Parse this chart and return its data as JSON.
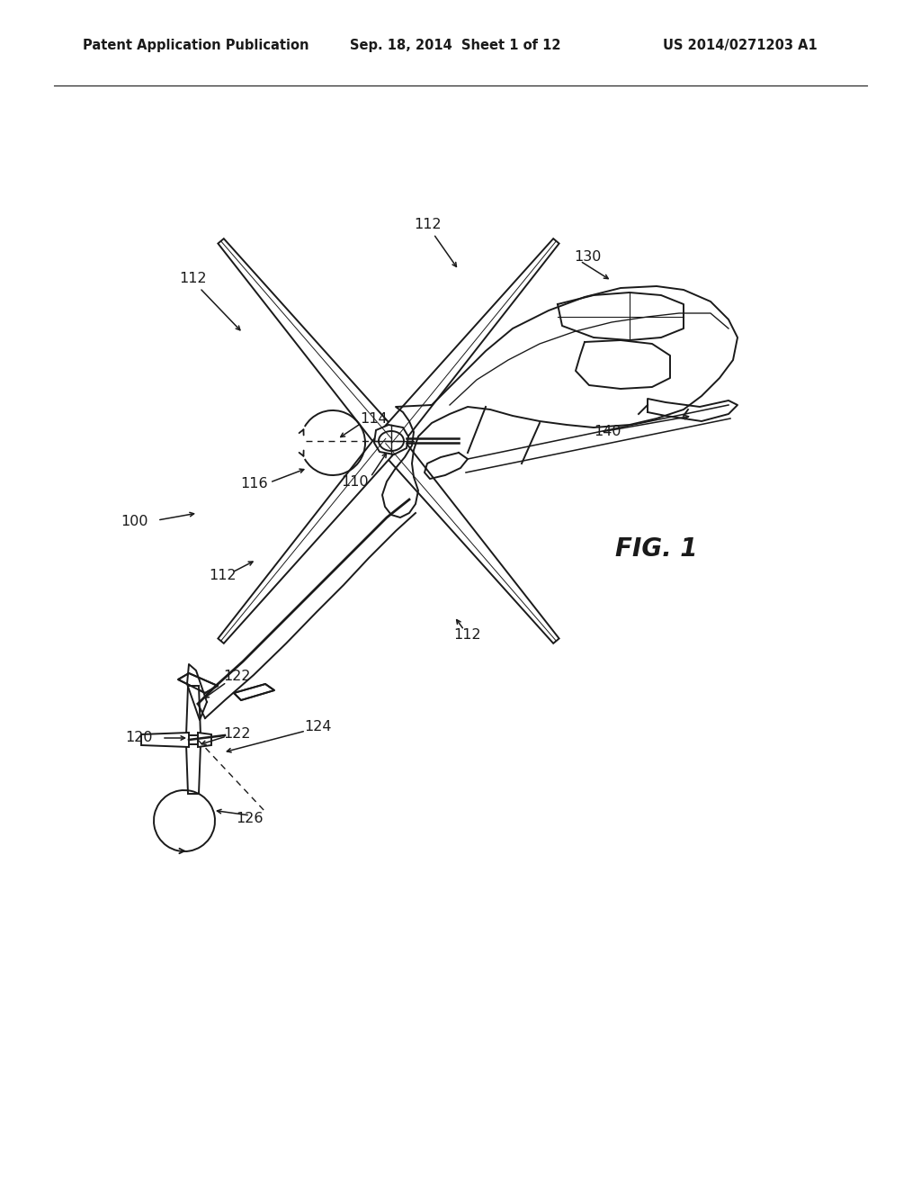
{
  "background_color": "#ffffff",
  "header_left": "Patent Application Publication",
  "header_center": "Sep. 18, 2014  Sheet 1 of 12",
  "header_right": "US 2014/0271203 A1",
  "fig_label": "FIG. 1",
  "line_color": "#1a1a1a",
  "text_color": "#1a1a1a",
  "header_fontsize": 10.5,
  "label_fontsize": 11.5,
  "fig_label_fontsize": 20,
  "fig_width": 10.24,
  "fig_height": 13.2,
  "dpi": 100
}
